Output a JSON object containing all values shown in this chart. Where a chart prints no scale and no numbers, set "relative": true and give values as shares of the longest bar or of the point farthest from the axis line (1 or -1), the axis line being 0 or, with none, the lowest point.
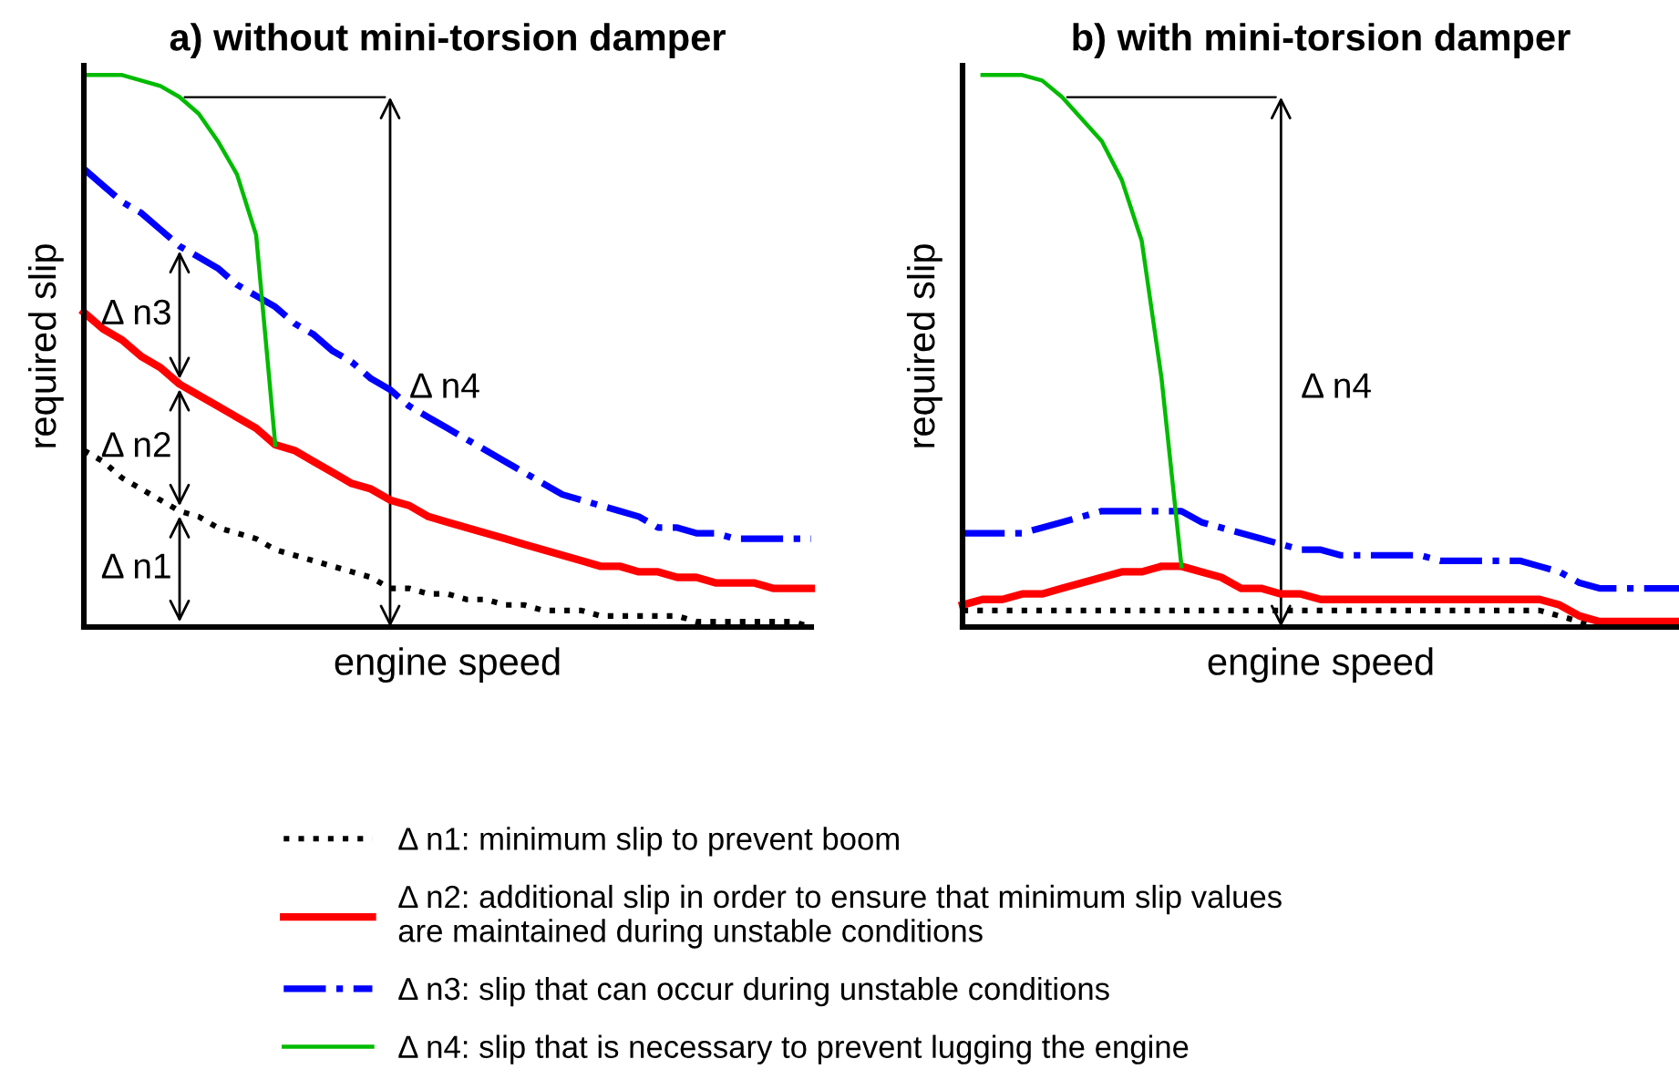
{
  "chart_data": [
    {
      "type": "line",
      "title": "a) without mini-torsion damper",
      "xlabel": "engine speed",
      "ylabel": "required slip",
      "relative": true,
      "legend": "bottom",
      "marker": "none",
      "categories": [
        null,
        null,
        null,
        null,
        null,
        null,
        null,
        null,
        null,
        null,
        null,
        null,
        null,
        null,
        null,
        null,
        null,
        null,
        null,
        null,
        null,
        null,
        null,
        null,
        null,
        null,
        null,
        null,
        null,
        null,
        null,
        null,
        null,
        null,
        null,
        null,
        null,
        null,
        null
      ],
      "series": [
        {
          "name": "Δ n1: minimum slip to prevent boom",
          "color": "#000000",
          "line_style": "dotted",
          "values": [
            0.32,
            0.3,
            0.27,
            0.25,
            0.23,
            0.21,
            0.2,
            0.18,
            0.17,
            0.16,
            0.14,
            0.13,
            0.12,
            0.11,
            0.1,
            0.09,
            0.07,
            0.07,
            0.06,
            0.06,
            0.05,
            0.05,
            0.04,
            0.04,
            0.03,
            0.03,
            0.03,
            0.02,
            0.02,
            0.02,
            0.02,
            0.02,
            0.01,
            0.01,
            0.01,
            0.01,
            0.01,
            0.01,
            0.0
          ]
        },
        {
          "name": "Δ n2: additional slip in order to ensure that minimum slip values are maintained during unstable conditions",
          "color": "#ff0000",
          "line_style": "solid",
          "values": [
            0.57,
            0.54,
            0.52,
            0.49,
            0.47,
            0.44,
            0.42,
            0.4,
            0.38,
            0.36,
            0.33,
            0.32,
            0.3,
            0.28,
            0.26,
            0.25,
            0.23,
            0.22,
            0.2,
            0.19,
            0.18,
            0.17,
            0.16,
            0.15,
            0.14,
            0.13,
            0.12,
            0.11,
            0.11,
            0.1,
            0.1,
            0.09,
            0.09,
            0.08,
            0.08,
            0.08,
            0.07,
            0.07,
            0.07
          ]
        },
        {
          "name": "Δ n3: slip that can occur during unstable conditions",
          "color": "#0000ff",
          "line_style": "dashdot",
          "values": [
            0.83,
            0.8,
            0.77,
            0.75,
            0.72,
            0.69,
            0.67,
            0.65,
            0.62,
            0.6,
            0.58,
            0.55,
            0.53,
            0.5,
            0.48,
            0.45,
            0.43,
            0.4,
            0.38,
            0.36,
            0.34,
            0.32,
            0.3,
            0.28,
            0.26,
            0.24,
            0.23,
            0.22,
            0.21,
            0.2,
            0.18,
            0.18,
            0.17,
            0.17,
            0.16,
            0.16,
            0.16,
            0.16,
            0.16
          ]
        },
        {
          "name": "Δ n4: slip that is necessary to prevent lugging the engine",
          "color": "#00bb00",
          "line_style": "solid",
          "values": [
            1.0,
            1.0,
            1.0,
            0.99,
            0.98,
            0.96,
            0.93,
            0.88,
            0.82,
            0.71,
            0.33,
            null,
            null,
            null,
            null,
            null,
            null,
            null,
            null,
            null,
            null,
            null,
            null,
            null,
            null,
            null,
            null,
            null,
            null,
            null,
            null,
            null,
            null,
            null,
            null,
            null,
            null,
            null,
            null
          ]
        }
      ],
      "annotations": [
        "Δ n1",
        "Δ n2",
        "Δ n3",
        "Δ n4"
      ]
    },
    {
      "type": "line",
      "title": "b) with mini-torsion damper",
      "xlabel": "engine speed",
      "ylabel": "required slip",
      "relative": true,
      "marker": "none",
      "categories": [
        null,
        null,
        null,
        null,
        null,
        null,
        null,
        null,
        null,
        null,
        null,
        null,
        null,
        null,
        null,
        null,
        null,
        null,
        null,
        null,
        null,
        null,
        null,
        null,
        null,
        null,
        null,
        null,
        null,
        null,
        null,
        null,
        null,
        null,
        null,
        null,
        null
      ],
      "series": [
        {
          "color": "#000000",
          "line_style": "dotted",
          "values": [
            0.03,
            0.03,
            0.03,
            0.03,
            0.03,
            0.03,
            0.03,
            0.03,
            0.03,
            0.03,
            0.03,
            0.03,
            0.03,
            0.03,
            0.03,
            0.03,
            0.03,
            0.03,
            0.03,
            0.03,
            0.03,
            0.03,
            0.03,
            0.03,
            0.03,
            0.03,
            0.03,
            0.03,
            0.03,
            0.03,
            0.02,
            0.01,
            0.0,
            0.0,
            0.0,
            0.0,
            0.0
          ]
        },
        {
          "color": "#ff0000",
          "line_style": "solid",
          "values": [
            0.04,
            0.05,
            0.05,
            0.06,
            0.06,
            0.07,
            0.08,
            0.09,
            0.1,
            0.1,
            0.11,
            0.11,
            0.1,
            0.09,
            0.07,
            0.07,
            0.06,
            0.06,
            0.05,
            0.05,
            0.05,
            0.05,
            0.05,
            0.05,
            0.05,
            0.05,
            0.05,
            0.05,
            0.05,
            0.05,
            0.04,
            0.02,
            0.01,
            0.01,
            0.01,
            0.01,
            0.01
          ]
        },
        {
          "color": "#0000ff",
          "line_style": "dashdot",
          "values": [
            0.17,
            0.17,
            0.17,
            0.17,
            0.18,
            0.19,
            0.2,
            0.21,
            0.21,
            0.21,
            0.21,
            0.21,
            0.19,
            0.18,
            0.17,
            0.16,
            0.15,
            0.14,
            0.14,
            0.13,
            0.13,
            0.13,
            0.13,
            0.13,
            0.12,
            0.12,
            0.12,
            0.12,
            0.12,
            0.11,
            0.1,
            0.08,
            0.07,
            0.07,
            0.07,
            0.07,
            0.07
          ]
        },
        {
          "color": "#00bb00",
          "line_style": "solid",
          "values": [
            null,
            1.0,
            1.0,
            1.0,
            0.99,
            0.96,
            0.92,
            0.88,
            0.81,
            0.7,
            0.45,
            0.11,
            null,
            null,
            null,
            null,
            null,
            null,
            null,
            null,
            null,
            null,
            null,
            null,
            null,
            null,
            null,
            null,
            null,
            null,
            null,
            null,
            null,
            null,
            null,
            null,
            null
          ]
        }
      ],
      "annotations": [
        "Δ n4"
      ]
    }
  ]
}
